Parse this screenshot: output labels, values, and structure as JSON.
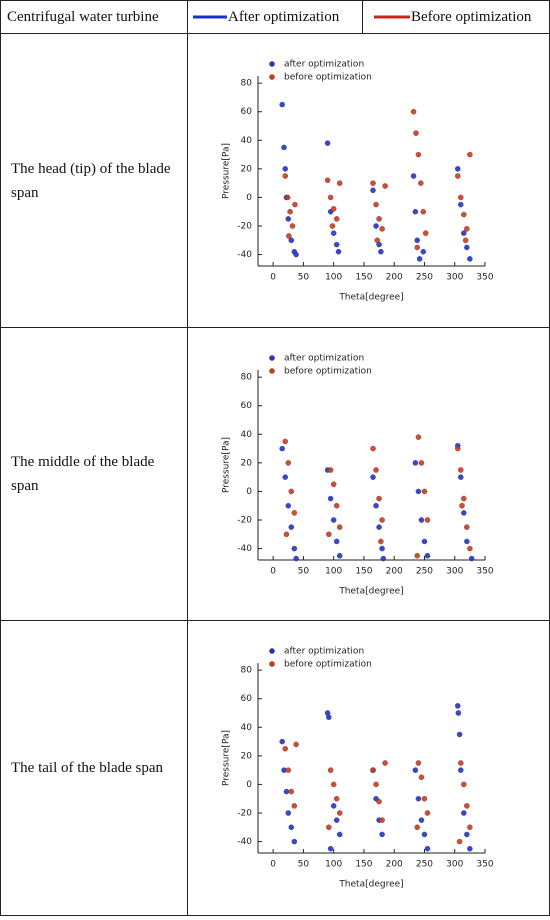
{
  "table": {
    "header": [
      "Centrifugal water turbine",
      "After optimization",
      "Before optimization"
    ],
    "rows": [
      "The head (tip) of the blade span",
      "The middle of the blade span",
      "The tail of the blade span"
    ]
  },
  "chart_data": [
    {
      "type": "scatter",
      "xlabel": "Theta[degree]",
      "ylabel": "Pressure[Pa]",
      "xlim": [
        -25,
        350
      ],
      "ylim": [
        -48,
        85
      ],
      "xticks": [
        0,
        50,
        100,
        150,
        200,
        250,
        300,
        350
      ],
      "yticks": [
        -40,
        -20,
        0,
        20,
        40,
        60,
        80
      ],
      "series": [
        {
          "name": "after optimization",
          "color": "#2233cc",
          "x": [
            15,
            18,
            20,
            22,
            25,
            30,
            35,
            38,
            90,
            95,
            100,
            105,
            108,
            165,
            170,
            175,
            178,
            232,
            235,
            238,
            242,
            248,
            305,
            310,
            315,
            320,
            325
          ],
          "values": [
            65,
            35,
            20,
            0,
            -15,
            -30,
            -38,
            -40,
            38,
            -10,
            -25,
            -33,
            -38,
            5,
            -20,
            -33,
            -38,
            15,
            -10,
            -30,
            -43,
            -38,
            20,
            -5,
            -25,
            -35,
            -43
          ]
        },
        {
          "name": "before optimization",
          "color": "#d03a1a",
          "x": [
            20,
            24,
            28,
            32,
            36,
            26,
            90,
            95,
            100,
            105,
            110,
            98,
            165,
            170,
            175,
            180,
            185,
            172,
            232,
            236,
            240,
            244,
            248,
            252,
            238,
            305,
            310,
            315,
            320,
            325,
            318
          ],
          "values": [
            15,
            0,
            -10,
            -20,
            -5,
            -27,
            12,
            0,
            -8,
            -15,
            10,
            -20,
            10,
            -5,
            -15,
            -22,
            8,
            -30,
            60,
            45,
            30,
            10,
            -10,
            -25,
            -35,
            15,
            0,
            -12,
            -22,
            30,
            -30
          ]
        }
      ]
    },
    {
      "type": "scatter",
      "xlabel": "Theta[degree]",
      "ylabel": "Pressure[Pa]",
      "xlim": [
        -25,
        350
      ],
      "ylim": [
        -48,
        85
      ],
      "xticks": [
        0,
        50,
        100,
        150,
        200,
        250,
        300,
        350
      ],
      "yticks": [
        -40,
        -20,
        0,
        20,
        40,
        60,
        80
      ],
      "series": [
        {
          "name": "after optimization",
          "color": "#2233cc",
          "x": [
            15,
            20,
            25,
            30,
            35,
            38,
            90,
            95,
            100,
            105,
            110,
            165,
            170,
            175,
            180,
            182,
            235,
            240,
            245,
            250,
            255,
            305,
            310,
            315,
            320,
            328
          ],
          "values": [
            30,
            10,
            -10,
            -25,
            -40,
            -47,
            15,
            -5,
            -20,
            -35,
            -45,
            10,
            -10,
            -25,
            -40,
            -47,
            20,
            0,
            -20,
            -35,
            -45,
            32,
            10,
            -15,
            -35,
            -47
          ]
        },
        {
          "name": "before optimization",
          "color": "#d03a1a",
          "x": [
            20,
            25,
            30,
            35,
            22,
            95,
            100,
            105,
            110,
            92,
            165,
            170,
            175,
            180,
            178,
            240,
            245,
            250,
            255,
            238,
            305,
            310,
            315,
            320,
            325,
            312
          ],
          "values": [
            35,
            20,
            0,
            -15,
            -30,
            15,
            5,
            -10,
            -25,
            -30,
            30,
            15,
            -5,
            -20,
            -35,
            38,
            20,
            0,
            -20,
            -45,
            30,
            15,
            -5,
            -25,
            -40,
            -10
          ]
        }
      ]
    },
    {
      "type": "scatter",
      "xlabel": "Theta[degree]",
      "ylabel": "Pressure[Pa]",
      "xlim": [
        -25,
        350
      ],
      "ylim": [
        -48,
        85
      ],
      "xticks": [
        0,
        50,
        100,
        150,
        200,
        250,
        300,
        350
      ],
      "yticks": [
        -40,
        -20,
        0,
        20,
        40,
        60,
        80
      ],
      "series": [
        {
          "name": "after optimization",
          "color": "#2233cc",
          "x": [
            15,
            18,
            22,
            25,
            30,
            35,
            90,
            92,
            95,
            100,
            105,
            110,
            165,
            170,
            175,
            180,
            235,
            240,
            245,
            250,
            255,
            305,
            306,
            308,
            310,
            315,
            320,
            325
          ],
          "values": [
            30,
            10,
            -5,
            -20,
            -30,
            -40,
            50,
            47,
            -45,
            -15,
            -25,
            -35,
            10,
            -10,
            -25,
            -35,
            10,
            -10,
            -25,
            -35,
            -45,
            55,
            50,
            35,
            10,
            -20,
            -35,
            -45
          ]
        },
        {
          "name": "before optimization",
          "color": "#d03a1a",
          "x": [
            20,
            25,
            30,
            35,
            38,
            95,
            100,
            105,
            110,
            92,
            165,
            170,
            175,
            180,
            185,
            240,
            245,
            250,
            255,
            238,
            310,
            315,
            320,
            325,
            308
          ],
          "values": [
            25,
            10,
            -5,
            -15,
            28,
            10,
            0,
            -10,
            -20,
            -30,
            10,
            0,
            -12,
            -25,
            15,
            15,
            5,
            -10,
            -20,
            -30,
            15,
            0,
            -15,
            -30,
            -40
          ]
        }
      ]
    }
  ]
}
